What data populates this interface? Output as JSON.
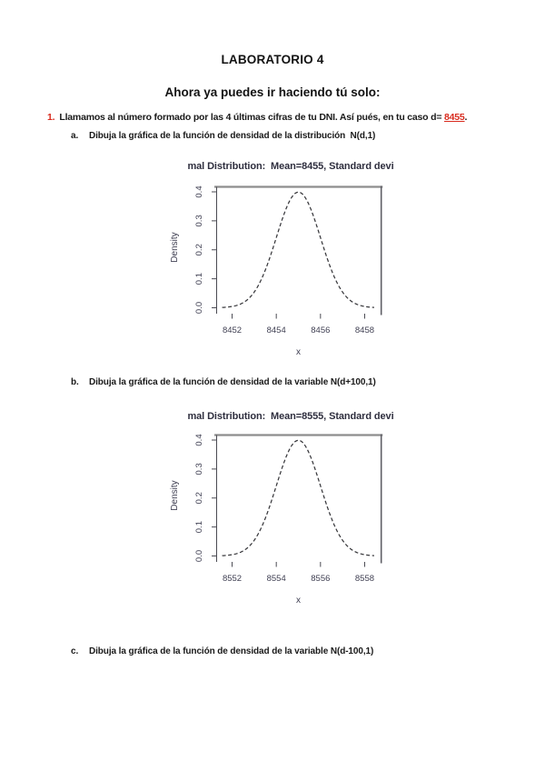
{
  "page": {
    "title": "LABORATORIO 4",
    "subtitle": "Ahora ya puedes ir haciendo tú solo:"
  },
  "exercise": {
    "number": "1.",
    "intro_before": "Llamamos al número formado por las 4 últimas cifras de tu DNI. Así pués, en tu caso d= ",
    "dni_value": "8455",
    "intro_after": ".",
    "items": [
      {
        "label": "a.",
        "text": "Dibuja la gráfica de la función de densidad de la distribución  N(d,1)"
      },
      {
        "label": "b.",
        "text": "Dibuja la gráfica de la función de densidad de la variable N(d+100,1)"
      },
      {
        "label": "c.",
        "text": "Dibuja la gráfica de la función de densidad de la variable N(d-100,1)"
      }
    ]
  },
  "colors": {
    "accent_red": "#d92b1e",
    "chart_title_text": "#2e2e3e",
    "chart_axis_text": "#3f3f52",
    "curve": "#38383c",
    "frame_top": "#8d8d8d",
    "frame_right": "#5f5f66",
    "axis_line": "#4a4a52"
  },
  "chart_data": [
    {
      "type": "line",
      "curve": "normal-density",
      "title": "mal Distribution:  Mean=8455, Standard devi",
      "mean": 8455,
      "sd": 1,
      "peak_density": 0.4,
      "xlabel": "x",
      "ylabel": "Density",
      "x_ticks": [
        8452,
        8454,
        8456,
        8458
      ],
      "y_ticks": [
        0,
        0.1,
        0.2,
        0.3,
        0.4
      ],
      "xlim": [
        8451.3,
        8458.7
      ],
      "ylim": [
        0,
        0.4
      ],
      "line_style": "dashed",
      "grid": false,
      "legend": false
    },
    {
      "type": "line",
      "curve": "normal-density",
      "title": "mal Distribution:  Mean=8555, Standard devi",
      "mean": 8555,
      "sd": 1,
      "peak_density": 0.4,
      "xlabel": "x",
      "ylabel": "Density",
      "x_ticks": [
        8552,
        8554,
        8556,
        8558
      ],
      "y_ticks": [
        0,
        0.1,
        0.2,
        0.3,
        0.4
      ],
      "xlim": [
        8551.3,
        8558.7
      ],
      "ylim": [
        0,
        0.4
      ],
      "line_style": "dashed",
      "grid": false,
      "legend": false
    }
  ]
}
